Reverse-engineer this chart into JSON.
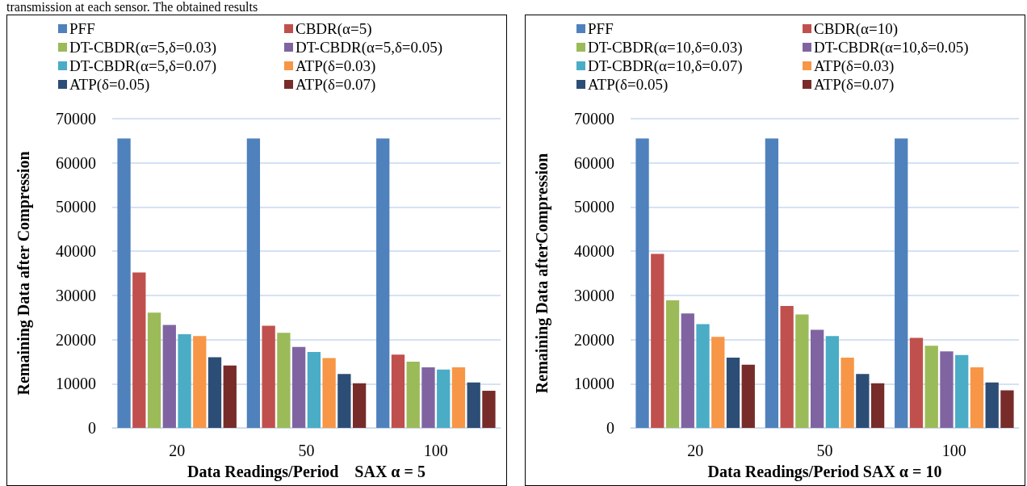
{
  "chart_data": [
    {
      "type": "bar",
      "annotations": [
        "transmission at each sensor. The obtained results"
      ],
      "xlabel": "Data Readings/Period    SAX α = 5",
      "ylabel": "Remaining Data after Compression",
      "categories": [
        "20",
        "50",
        "100"
      ],
      "ylim": [
        0,
        70000
      ],
      "yticks": [
        0,
        10000,
        20000,
        30000,
        40000,
        50000,
        60000,
        70000
      ],
      "grid": "y",
      "legend": "top",
      "series": [
        {
          "name": "PFF",
          "color": "#4f81bd",
          "values": [
            65500,
            65500,
            65500
          ]
        },
        {
          "name": "CBDR(α=5)",
          "color": "#c0504d",
          "values": [
            35200,
            23100,
            16600
          ]
        },
        {
          "name": "DT-CBDR(α=5,δ=0.03)",
          "color": "#9bbb59",
          "values": [
            26100,
            21500,
            15000
          ]
        },
        {
          "name": "DT-CBDR(α=5,δ=0.05)",
          "color": "#8064a2",
          "values": [
            23300,
            18300,
            13700
          ]
        },
        {
          "name": "DT-CBDR(α=5,δ=0.07)",
          "color": "#4bacc6",
          "values": [
            21200,
            17200,
            13200
          ]
        },
        {
          "name": "ATP(δ=0.03)",
          "color": "#f79646",
          "values": [
            20800,
            15800,
            13700
          ]
        },
        {
          "name": "ATP(δ=0.05)",
          "color": "#2c4d75",
          "values": [
            16000,
            12200,
            10300
          ]
        },
        {
          "name": "ATP(δ=0.07)",
          "color": "#772c2a",
          "values": [
            14100,
            10100,
            8400
          ]
        }
      ]
    },
    {
      "type": "bar",
      "xlabel": "Data Readings/Period SAX α = 10",
      "ylabel": "Remaining Data afterCompression",
      "categories": [
        "20",
        "50",
        "100"
      ],
      "ylim": [
        0,
        70000
      ],
      "yticks": [
        0,
        10000,
        20000,
        30000,
        40000,
        50000,
        60000,
        70000
      ],
      "grid": "y",
      "legend": "top",
      "series": [
        {
          "name": "PFF",
          "color": "#4f81bd",
          "values": [
            65500,
            65500,
            65500
          ]
        },
        {
          "name": "CBDR(α=10)",
          "color": "#c0504d",
          "values": [
            39400,
            27600,
            20400
          ]
        },
        {
          "name": "DT-CBDR(α=10,δ=0.03)",
          "color": "#9bbb59",
          "values": [
            28900,
            25700,
            18600
          ]
        },
        {
          "name": "DT-CBDR(α=10,δ=0.05)",
          "color": "#8064a2",
          "values": [
            25900,
            22200,
            17300
          ]
        },
        {
          "name": "DT-CBDR(α=10,δ=0.07)",
          "color": "#4bacc6",
          "values": [
            23500,
            20800,
            16500
          ]
        },
        {
          "name": "ATP(δ=0.03)",
          "color": "#f79646",
          "values": [
            20600,
            15900,
            13700
          ]
        },
        {
          "name": "ATP(δ=0.05)",
          "color": "#2c4d75",
          "values": [
            15900,
            12200,
            10300
          ]
        },
        {
          "name": "ATP(δ=0.07)",
          "color": "#772c2a",
          "values": [
            14300,
            10100,
            8500
          ]
        }
      ]
    }
  ]
}
